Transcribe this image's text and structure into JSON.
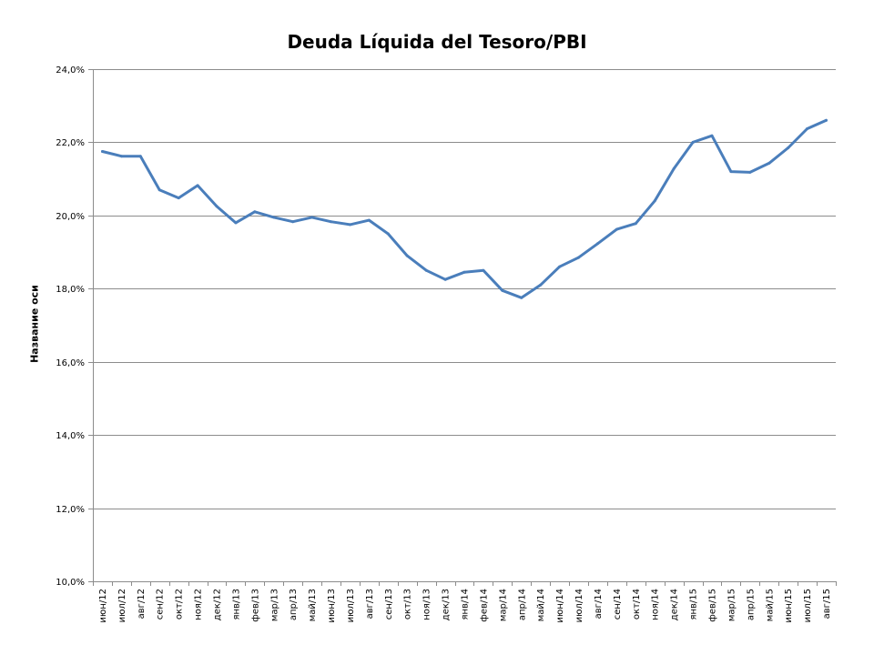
{
  "chart_data": {
    "type": "line",
    "title": "Deuda Líquida del Tesoro/PBI",
    "ylabel": "Название оси",
    "xlabel": "",
    "ylim": [
      10.0,
      24.0
    ],
    "y_ticks": [
      "10,0%",
      "12,0%",
      "14,0%",
      "16,0%",
      "18,0%",
      "20,0%",
      "22,0%",
      "24,0%"
    ],
    "y_tick_values": [
      10,
      12,
      14,
      16,
      18,
      20,
      22,
      24
    ],
    "grid": true,
    "legend": "none",
    "line_color": "#4a7ebb",
    "categories": [
      "июн/12",
      "июл/12",
      "авг/12",
      "сен/12",
      "окт/12",
      "ноя/12",
      "дек/12",
      "янв/13",
      "фев/13",
      "мар/13",
      "апр/13",
      "май/13",
      "июн/13",
      "июл/13",
      "авг/13",
      "сен/13",
      "окт/13",
      "ноя/13",
      "дек/13",
      "янв/14",
      "фев/14",
      "мар/14",
      "апр/14",
      "май/14",
      "июн/14",
      "июл/14",
      "авг/14",
      "сен/14",
      "окт/14",
      "ноя/14",
      "дек/14",
      "янв/15",
      "фев/15",
      "мар/15",
      "апр/15",
      "май/15",
      "июн/15",
      "июл/15",
      "авг/15"
    ],
    "series": [
      {
        "values": [
          21.75,
          21.62,
          21.62,
          20.7,
          20.48,
          20.82,
          20.25,
          19.8,
          20.1,
          19.95,
          19.83,
          19.95,
          19.83,
          19.75,
          19.87,
          19.5,
          18.9,
          18.5,
          18.25,
          18.45,
          18.5,
          17.95,
          17.75,
          18.1,
          18.6,
          18.85,
          19.23,
          19.62,
          19.78,
          20.4,
          21.28,
          22.0,
          22.18,
          21.2,
          21.18,
          21.43,
          21.85,
          22.37,
          22.6
        ]
      }
    ]
  }
}
